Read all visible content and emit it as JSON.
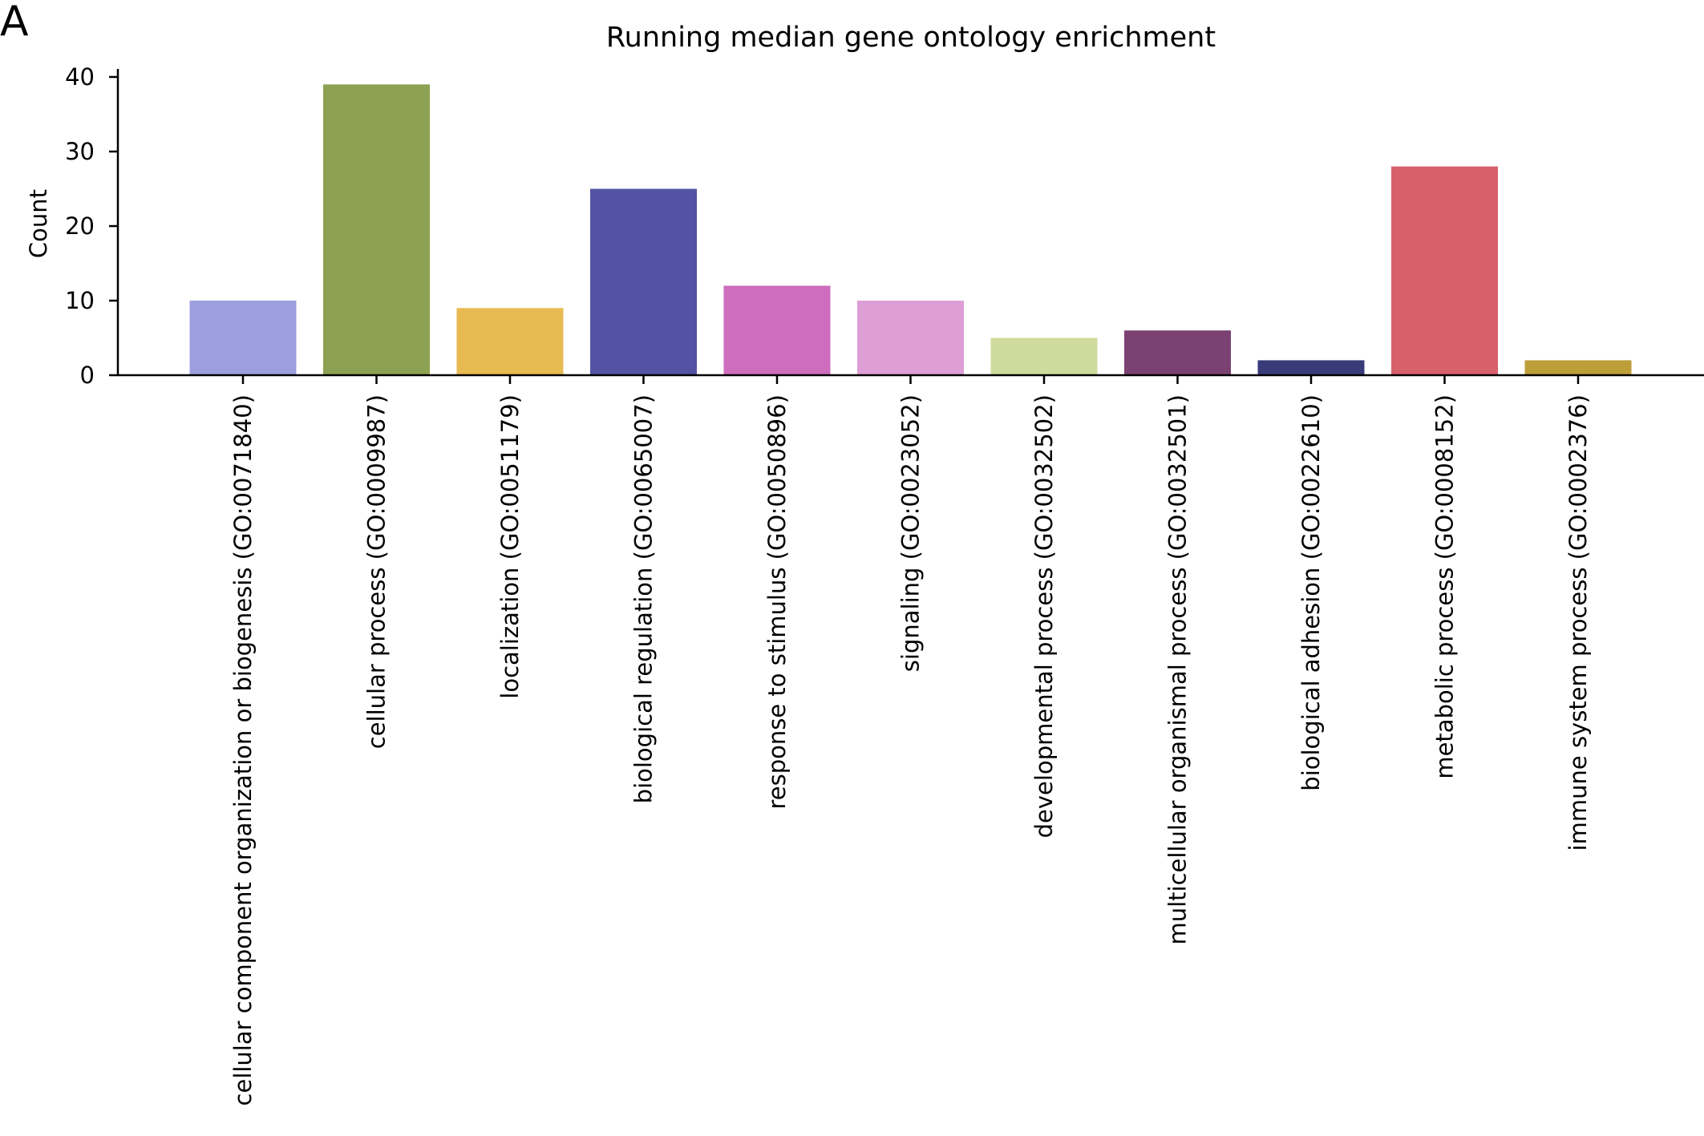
{
  "panel_label": "A",
  "chart_data": {
    "type": "bar",
    "title": "Running median gene ontology enrichment",
    "xlabel": "",
    "ylabel": "Count",
    "ylim": [
      0,
      40
    ],
    "yticks": [
      0,
      10,
      20,
      30,
      40
    ],
    "grid": false,
    "legend": "none",
    "categories": [
      "cellular component organization or biogenesis (GO:0071840)",
      "cellular process (GO:0009987)",
      "localization (GO:0051179)",
      "biological regulation (GO:0065007)",
      "response to stimulus (GO:0050896)",
      "signaling (GO:0023052)",
      "developmental process (GO:0032502)",
      "multicellular organismal process (GO:0032501)",
      "biological adhesion (GO:0022610)",
      "metabolic process (GO:0008152)",
      "immune system process (GO:0002376)"
    ],
    "values": [
      10,
      39,
      9,
      25,
      12,
      10,
      5,
      6,
      2,
      28,
      2
    ],
    "colors": [
      "#9c9ede",
      "#8ca252",
      "#e7ba52",
      "#5254a3",
      "#ce6dbd",
      "#de9ed6",
      "#cedb9c",
      "#7b4173",
      "#393b79",
      "#d6616b",
      "#bd9e39"
    ]
  }
}
